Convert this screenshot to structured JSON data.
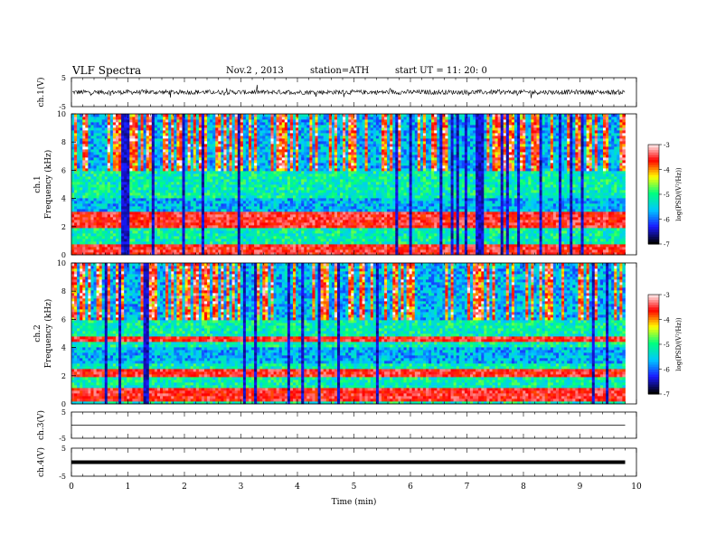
{
  "header": {
    "title": "VLF  Spectra",
    "date": "Nov.2  , 2013",
    "station": "station=ATH",
    "start_ut": "start  UT  =   11: 20: 0"
  },
  "colors": {
    "spectrogram_scale": [
      "#000000",
      "#1a1aff",
      "#00c8ff",
      "#00ff80",
      "#ffff00",
      "#ff0000",
      "#ffffff"
    ]
  },
  "chart_data": [
    {
      "type": "line",
      "name": "ch1",
      "ylabel": "ch.1(V)",
      "xlim": [
        0,
        10
      ],
      "ylim": [
        -5,
        5
      ],
      "y_ticks": [
        "5",
        "-5"
      ],
      "approx_level": 0,
      "noise_amplitude": 0.8,
      "data_extent_min": [
        0,
        9.8
      ]
    },
    {
      "type": "heatmap",
      "name": "ch1-spectrogram",
      "ylabel_top": "ch.1",
      "ylabel": "Frequency  (kHz)",
      "xlim": [
        0,
        10
      ],
      "ylim": [
        0,
        10
      ],
      "y_ticks": [
        "0",
        "2",
        "4",
        "6",
        "8",
        "10"
      ],
      "colorbar": {
        "label": "log(PSD/(V²/Hz))",
        "range": [
          -7,
          -3
        ],
        "ticks": [
          "-3",
          "-4",
          "-5",
          "-6",
          "-7"
        ]
      },
      "strong_bands_khz": [
        0.1,
        0.5,
        2.2,
        2.8
      ]
    },
    {
      "type": "heatmap",
      "name": "ch2-spectrogram",
      "ylabel_top": "ch.2",
      "ylabel": "Frequency  (kHz)",
      "xlim": [
        0,
        10
      ],
      "ylim": [
        0,
        10
      ],
      "y_ticks": [
        "0",
        "2",
        "4",
        "6",
        "8",
        "10"
      ],
      "colorbar": {
        "label": "log(PSD/(V²/Hz))",
        "range": [
          -7,
          -3
        ],
        "ticks": [
          "-3",
          "-4",
          "-5",
          "-6",
          "-7"
        ]
      },
      "strong_bands_khz": [
        0.5,
        0.9,
        2.2,
        4.6
      ]
    },
    {
      "type": "line",
      "name": "ch3",
      "ylabel": "ch.3(V)",
      "xlim": [
        0,
        10
      ],
      "ylim": [
        -5,
        5
      ],
      "y_ticks": [
        "5",
        "-5"
      ],
      "approx_level": 0,
      "data_extent_min": [
        0,
        9.8
      ]
    },
    {
      "type": "line",
      "name": "ch4",
      "ylabel": "ch.4(V)",
      "xlim": [
        0,
        10
      ],
      "ylim": [
        -5,
        5
      ],
      "y_ticks": [
        "5",
        "-5"
      ],
      "approx_level": 0,
      "data_extent_min": [
        0,
        9.8
      ]
    }
  ],
  "x_axis": {
    "label": "Time  (min)",
    "range": [
      0,
      10
    ],
    "ticks": [
      "0",
      "1",
      "2",
      "3",
      "4",
      "5",
      "6",
      "7",
      "8",
      "9",
      "10"
    ]
  }
}
